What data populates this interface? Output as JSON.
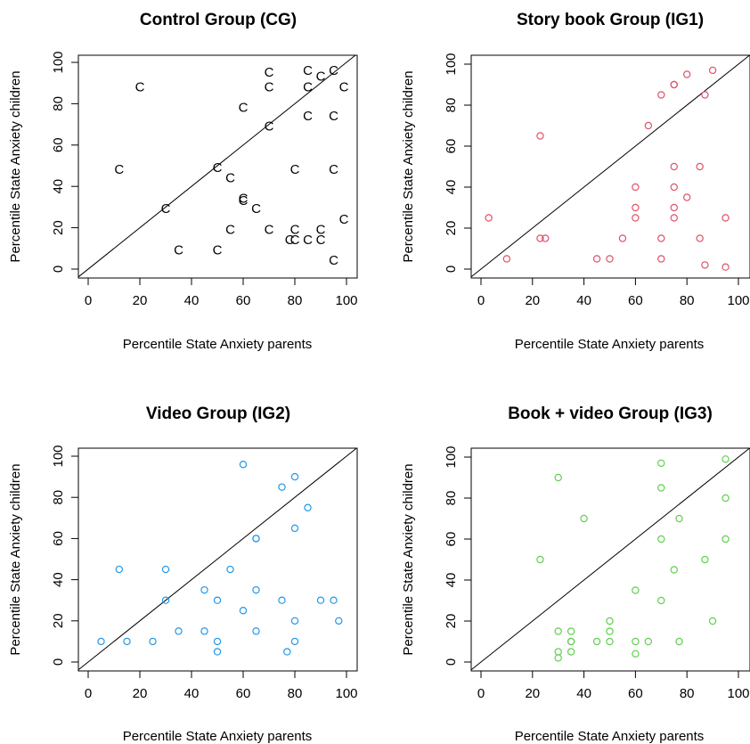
{
  "chart_data": [
    {
      "type": "scatter",
      "title": "Control Group (CG)",
      "xlabel": "Percentile State Anxiety parents",
      "ylabel": "Percentile State Anxiety children",
      "xlim": [
        0,
        100
      ],
      "ylim": [
        0,
        100
      ],
      "x_ticks": [
        "0",
        "20",
        "40",
        "60",
        "80",
        "100"
      ],
      "y_ticks": [
        "0",
        "20",
        "40",
        "60",
        "80",
        "100"
      ],
      "reference_line": "y = x",
      "marker": "letter",
      "marker_symbol": "C",
      "color": "#000000",
      "points": [
        {
          "x": 20,
          "y": 88
        },
        {
          "x": 12,
          "y": 48
        },
        {
          "x": 30,
          "y": 29
        },
        {
          "x": 35,
          "y": 9
        },
        {
          "x": 50,
          "y": 49
        },
        {
          "x": 50,
          "y": 9
        },
        {
          "x": 55,
          "y": 44
        },
        {
          "x": 55,
          "y": 19
        },
        {
          "x": 60,
          "y": 78
        },
        {
          "x": 60,
          "y": 34
        },
        {
          "x": 60,
          "y": 33
        },
        {
          "x": 65,
          "y": 29
        },
        {
          "x": 70,
          "y": 95
        },
        {
          "x": 70,
          "y": 88
        },
        {
          "x": 70,
          "y": 69
        },
        {
          "x": 70,
          "y": 19
        },
        {
          "x": 78,
          "y": 14
        },
        {
          "x": 80,
          "y": 48
        },
        {
          "x": 80,
          "y": 19
        },
        {
          "x": 80,
          "y": 14
        },
        {
          "x": 85,
          "y": 96
        },
        {
          "x": 85,
          "y": 88
        },
        {
          "x": 85,
          "y": 74
        },
        {
          "x": 85,
          "y": 14
        },
        {
          "x": 90,
          "y": 93
        },
        {
          "x": 90,
          "y": 19
        },
        {
          "x": 90,
          "y": 14
        },
        {
          "x": 95,
          "y": 96
        },
        {
          "x": 95,
          "y": 74
        },
        {
          "x": 95,
          "y": 48
        },
        {
          "x": 95,
          "y": 4
        },
        {
          "x": 99,
          "y": 88
        },
        {
          "x": 99,
          "y": 24
        }
      ]
    },
    {
      "type": "scatter",
      "title": "Story book Group (IG1)",
      "xlabel": "Percentile State Anxiety parents",
      "ylabel": "Percentile State Anxiety children",
      "xlim": [
        0,
        100
      ],
      "ylim": [
        0,
        100
      ],
      "x_ticks": [
        "0",
        "20",
        "40",
        "60",
        "80",
        "100"
      ],
      "y_ticks": [
        "0",
        "20",
        "40",
        "60",
        "80",
        "100"
      ],
      "reference_line": "y = x",
      "marker": "open-circle",
      "color": "#DF536B",
      "points": [
        {
          "x": 3,
          "y": 25
        },
        {
          "x": 10,
          "y": 5
        },
        {
          "x": 23,
          "y": 65
        },
        {
          "x": 23,
          "y": 15
        },
        {
          "x": 25,
          "y": 15
        },
        {
          "x": 45,
          "y": 5
        },
        {
          "x": 50,
          "y": 5
        },
        {
          "x": 55,
          "y": 15
        },
        {
          "x": 60,
          "y": 40
        },
        {
          "x": 60,
          "y": 30
        },
        {
          "x": 60,
          "y": 25
        },
        {
          "x": 65,
          "y": 70
        },
        {
          "x": 70,
          "y": 85
        },
        {
          "x": 70,
          "y": 15
        },
        {
          "x": 70,
          "y": 5
        },
        {
          "x": 75,
          "y": 90
        },
        {
          "x": 75,
          "y": 90
        },
        {
          "x": 75,
          "y": 50
        },
        {
          "x": 75,
          "y": 40
        },
        {
          "x": 75,
          "y": 30
        },
        {
          "x": 75,
          "y": 25
        },
        {
          "x": 80,
          "y": 95
        },
        {
          "x": 80,
          "y": 35
        },
        {
          "x": 85,
          "y": 50
        },
        {
          "x": 85,
          "y": 15
        },
        {
          "x": 87,
          "y": 85
        },
        {
          "x": 87,
          "y": 2
        },
        {
          "x": 90,
          "y": 97
        },
        {
          "x": 95,
          "y": 25
        },
        {
          "x": 95,
          "y": 1
        }
      ]
    },
    {
      "type": "scatter",
      "title": "Video Group (IG2)",
      "xlabel": "Percentile State Anxiety parents",
      "ylabel": "Percentile State Anxiety children",
      "xlim": [
        0,
        100
      ],
      "ylim": [
        0,
        100
      ],
      "x_ticks": [
        "0",
        "20",
        "40",
        "60",
        "80",
        "100"
      ],
      "y_ticks": [
        "0",
        "20",
        "40",
        "60",
        "80",
        "100"
      ],
      "reference_line": "y = x",
      "marker": "open-circle",
      "color": "#2297E6",
      "points": [
        {
          "x": 5,
          "y": 10
        },
        {
          "x": 12,
          "y": 45
        },
        {
          "x": 15,
          "y": 10
        },
        {
          "x": 25,
          "y": 10
        },
        {
          "x": 30,
          "y": 45
        },
        {
          "x": 30,
          "y": 30
        },
        {
          "x": 35,
          "y": 15
        },
        {
          "x": 45,
          "y": 35
        },
        {
          "x": 45,
          "y": 15
        },
        {
          "x": 50,
          "y": 30
        },
        {
          "x": 50,
          "y": 10
        },
        {
          "x": 50,
          "y": 5
        },
        {
          "x": 55,
          "y": 45
        },
        {
          "x": 60,
          "y": 96
        },
        {
          "x": 60,
          "y": 25
        },
        {
          "x": 65,
          "y": 60
        },
        {
          "x": 65,
          "y": 60
        },
        {
          "x": 65,
          "y": 35
        },
        {
          "x": 65,
          "y": 15
        },
        {
          "x": 75,
          "y": 85
        },
        {
          "x": 75,
          "y": 30
        },
        {
          "x": 77,
          "y": 5
        },
        {
          "x": 80,
          "y": 90
        },
        {
          "x": 80,
          "y": 65
        },
        {
          "x": 80,
          "y": 20
        },
        {
          "x": 80,
          "y": 10
        },
        {
          "x": 85,
          "y": 75
        },
        {
          "x": 90,
          "y": 30
        },
        {
          "x": 95,
          "y": 30
        },
        {
          "x": 97,
          "y": 20
        }
      ]
    },
    {
      "type": "scatter",
      "title": "Book + video Group (IG3)",
      "xlabel": "Percentile State Anxiety parents",
      "ylabel": "Percentile State Anxiety children",
      "xlim": [
        0,
        100
      ],
      "ylim": [
        0,
        100
      ],
      "x_ticks": [
        "0",
        "20",
        "40",
        "60",
        "80",
        "100"
      ],
      "y_ticks": [
        "0",
        "20",
        "40",
        "60",
        "80",
        "100"
      ],
      "reference_line": "y = x",
      "marker": "open-circle",
      "color": "#61D04F",
      "points": [
        {
          "x": 23,
          "y": 50
        },
        {
          "x": 30,
          "y": 90
        },
        {
          "x": 30,
          "y": 15
        },
        {
          "x": 30,
          "y": 5
        },
        {
          "x": 30,
          "y": 2
        },
        {
          "x": 35,
          "y": 15
        },
        {
          "x": 35,
          "y": 10
        },
        {
          "x": 35,
          "y": 10
        },
        {
          "x": 35,
          "y": 5
        },
        {
          "x": 40,
          "y": 70
        },
        {
          "x": 45,
          "y": 10
        },
        {
          "x": 50,
          "y": 20
        },
        {
          "x": 50,
          "y": 15
        },
        {
          "x": 50,
          "y": 10
        },
        {
          "x": 60,
          "y": 35
        },
        {
          "x": 60,
          "y": 10
        },
        {
          "x": 60,
          "y": 4
        },
        {
          "x": 65,
          "y": 10
        },
        {
          "x": 70,
          "y": 97
        },
        {
          "x": 70,
          "y": 85
        },
        {
          "x": 70,
          "y": 60
        },
        {
          "x": 70,
          "y": 30
        },
        {
          "x": 75,
          "y": 45
        },
        {
          "x": 77,
          "y": 70
        },
        {
          "x": 77,
          "y": 10
        },
        {
          "x": 87,
          "y": 50
        },
        {
          "x": 90,
          "y": 20
        },
        {
          "x": 95,
          "y": 99
        },
        {
          "x": 95,
          "y": 80
        },
        {
          "x": 95,
          "y": 60
        }
      ]
    }
  ]
}
